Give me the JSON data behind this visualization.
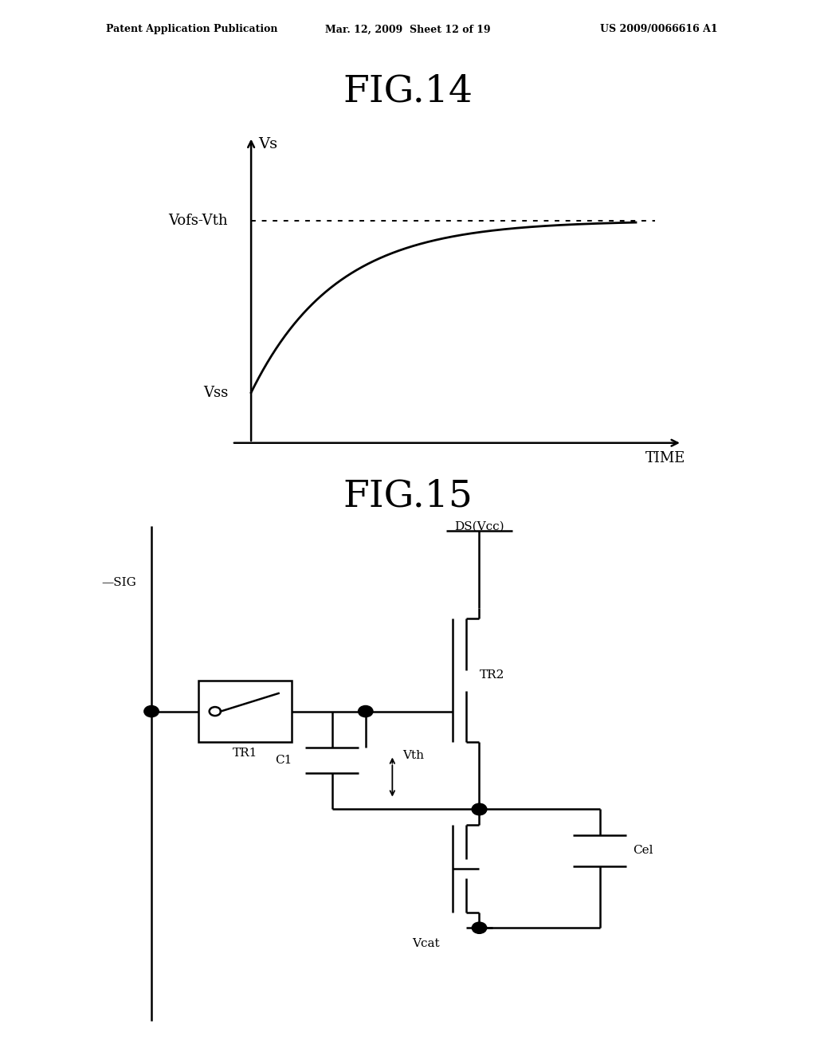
{
  "header_left": "Patent Application Publication",
  "header_mid": "Mar. 12, 2009  Sheet 12 of 19",
  "header_right": "US 2009/0066616 A1",
  "fig14_title": "FIG.14",
  "fig15_title": "FIG.15",
  "fig14_ylabel": "Vs",
  "fig14_vofs_label": "Vofs-Vth",
  "fig14_vss_label": "Vss",
  "fig14_xlabel": "TIME",
  "background_color": "#ffffff",
  "line_color": "#000000"
}
